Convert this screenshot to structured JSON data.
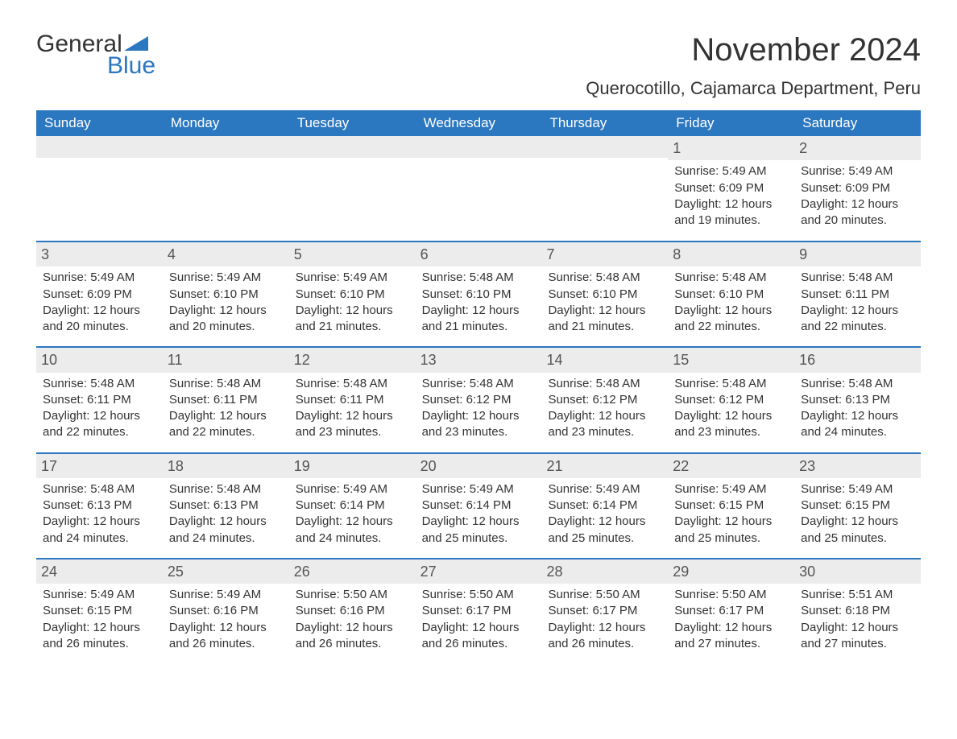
{
  "brand": {
    "word1": "General",
    "word2": "Blue",
    "accent_color": "#2b77c0"
  },
  "title": "November 2024",
  "location": "Querocotillo, Cajamarca Department, Peru",
  "colors": {
    "header_bg": "#2b77c0",
    "header_text": "#ffffff",
    "daynum_bg": "#ececec",
    "text": "#333333",
    "row_border": "#2b77c0"
  },
  "daysOfWeek": [
    "Sunday",
    "Monday",
    "Tuesday",
    "Wednesday",
    "Thursday",
    "Friday",
    "Saturday"
  ],
  "weeks": [
    [
      null,
      null,
      null,
      null,
      null,
      {
        "n": "1",
        "sunrise": "5:49 AM",
        "sunset": "6:09 PM",
        "daylight": "12 hours and 19 minutes."
      },
      {
        "n": "2",
        "sunrise": "5:49 AM",
        "sunset": "6:09 PM",
        "daylight": "12 hours and 20 minutes."
      }
    ],
    [
      {
        "n": "3",
        "sunrise": "5:49 AM",
        "sunset": "6:09 PM",
        "daylight": "12 hours and 20 minutes."
      },
      {
        "n": "4",
        "sunrise": "5:49 AM",
        "sunset": "6:10 PM",
        "daylight": "12 hours and 20 minutes."
      },
      {
        "n": "5",
        "sunrise": "5:49 AM",
        "sunset": "6:10 PM",
        "daylight": "12 hours and 21 minutes."
      },
      {
        "n": "6",
        "sunrise": "5:48 AM",
        "sunset": "6:10 PM",
        "daylight": "12 hours and 21 minutes."
      },
      {
        "n": "7",
        "sunrise": "5:48 AM",
        "sunset": "6:10 PM",
        "daylight": "12 hours and 21 minutes."
      },
      {
        "n": "8",
        "sunrise": "5:48 AM",
        "sunset": "6:10 PM",
        "daylight": "12 hours and 22 minutes."
      },
      {
        "n": "9",
        "sunrise": "5:48 AM",
        "sunset": "6:11 PM",
        "daylight": "12 hours and 22 minutes."
      }
    ],
    [
      {
        "n": "10",
        "sunrise": "5:48 AM",
        "sunset": "6:11 PM",
        "daylight": "12 hours and 22 minutes."
      },
      {
        "n": "11",
        "sunrise": "5:48 AM",
        "sunset": "6:11 PM",
        "daylight": "12 hours and 22 minutes."
      },
      {
        "n": "12",
        "sunrise": "5:48 AM",
        "sunset": "6:11 PM",
        "daylight": "12 hours and 23 minutes."
      },
      {
        "n": "13",
        "sunrise": "5:48 AM",
        "sunset": "6:12 PM",
        "daylight": "12 hours and 23 minutes."
      },
      {
        "n": "14",
        "sunrise": "5:48 AM",
        "sunset": "6:12 PM",
        "daylight": "12 hours and 23 minutes."
      },
      {
        "n": "15",
        "sunrise": "5:48 AM",
        "sunset": "6:12 PM",
        "daylight": "12 hours and 23 minutes."
      },
      {
        "n": "16",
        "sunrise": "5:48 AM",
        "sunset": "6:13 PM",
        "daylight": "12 hours and 24 minutes."
      }
    ],
    [
      {
        "n": "17",
        "sunrise": "5:48 AM",
        "sunset": "6:13 PM",
        "daylight": "12 hours and 24 minutes."
      },
      {
        "n": "18",
        "sunrise": "5:48 AM",
        "sunset": "6:13 PM",
        "daylight": "12 hours and 24 minutes."
      },
      {
        "n": "19",
        "sunrise": "5:49 AM",
        "sunset": "6:14 PM",
        "daylight": "12 hours and 24 minutes."
      },
      {
        "n": "20",
        "sunrise": "5:49 AM",
        "sunset": "6:14 PM",
        "daylight": "12 hours and 25 minutes."
      },
      {
        "n": "21",
        "sunrise": "5:49 AM",
        "sunset": "6:14 PM",
        "daylight": "12 hours and 25 minutes."
      },
      {
        "n": "22",
        "sunrise": "5:49 AM",
        "sunset": "6:15 PM",
        "daylight": "12 hours and 25 minutes."
      },
      {
        "n": "23",
        "sunrise": "5:49 AM",
        "sunset": "6:15 PM",
        "daylight": "12 hours and 25 minutes."
      }
    ],
    [
      {
        "n": "24",
        "sunrise": "5:49 AM",
        "sunset": "6:15 PM",
        "daylight": "12 hours and 26 minutes."
      },
      {
        "n": "25",
        "sunrise": "5:49 AM",
        "sunset": "6:16 PM",
        "daylight": "12 hours and 26 minutes."
      },
      {
        "n": "26",
        "sunrise": "5:50 AM",
        "sunset": "6:16 PM",
        "daylight": "12 hours and 26 minutes."
      },
      {
        "n": "27",
        "sunrise": "5:50 AM",
        "sunset": "6:17 PM",
        "daylight": "12 hours and 26 minutes."
      },
      {
        "n": "28",
        "sunrise": "5:50 AM",
        "sunset": "6:17 PM",
        "daylight": "12 hours and 26 minutes."
      },
      {
        "n": "29",
        "sunrise": "5:50 AM",
        "sunset": "6:17 PM",
        "daylight": "12 hours and 27 minutes."
      },
      {
        "n": "30",
        "sunrise": "5:51 AM",
        "sunset": "6:18 PM",
        "daylight": "12 hours and 27 minutes."
      }
    ]
  ],
  "labels": {
    "sunrise": "Sunrise: ",
    "sunset": "Sunset: ",
    "daylight": "Daylight: "
  }
}
